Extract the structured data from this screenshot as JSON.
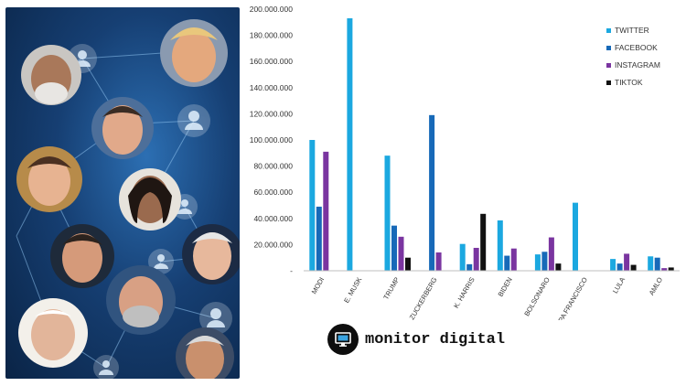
{
  "brand": {
    "name": "monitor digital",
    "logo_icon": "monitor-icon"
  },
  "photo_panel": {
    "description_icon": "social-network-portraits",
    "background_color": "#163f73"
  },
  "chart_data": {
    "type": "bar",
    "categories": [
      "MODI",
      "E. MUSK",
      "TRUMP",
      "M. ZUCKERBERG",
      "K. HARRIS",
      "BIDEN",
      "BOLSONARO",
      "PAPA FRANCISCO",
      "LULA",
      "AMLO"
    ],
    "series": [
      {
        "name": "TWITTER",
        "color": "#1ba8e0",
        "values": [
          100000000,
          193000000,
          88000000,
          0,
          20500000,
          38500000,
          12500000,
          52000000,
          9000000,
          11000000
        ]
      },
      {
        "name": "FACEBOOK",
        "color": "#1769b8",
        "values": [
          49000000,
          0,
          34500000,
          119000000,
          5000000,
          11500000,
          14500000,
          0,
          5500000,
          10000000
        ]
      },
      {
        "name": "INSTAGRAM",
        "color": "#7a35a0",
        "values": [
          91000000,
          0,
          26000000,
          14000000,
          17500000,
          17000000,
          25500000,
          0,
          13000000,
          2000000
        ]
      },
      {
        "name": "TIKTOK",
        "color": "#111111",
        "values": [
          0,
          0,
          10000000,
          0,
          43500000,
          0,
          5500000,
          0,
          4500000,
          2500000
        ]
      }
    ],
    "ylim": [
      0,
      200000000
    ],
    "yticks": [
      "-",
      "20.000.000",
      "40.000.000",
      "60.000.000",
      "80.000.000",
      "100.000.000",
      "120.000.000",
      "140.000.000",
      "160.000.000",
      "180.000.000",
      "200.000.000"
    ],
    "grid": false,
    "legend_position": "top-right"
  }
}
